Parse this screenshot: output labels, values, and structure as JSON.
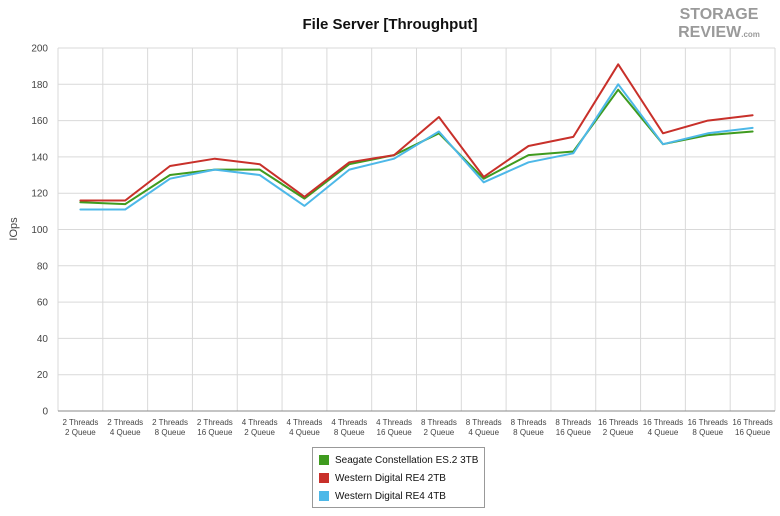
{
  "logo": {
    "line1": "STORAGE",
    "line2": "REVIEW",
    "suffix": ".com"
  },
  "chart_data": {
    "type": "line",
    "title": "File Server [Throughput]",
    "xlabel": "",
    "ylabel": "IOps",
    "ylim": [
      0,
      200
    ],
    "yticks": [
      0,
      20,
      40,
      60,
      80,
      100,
      120,
      140,
      160,
      180,
      200
    ],
    "grid": true,
    "legend_position": "bottom-center",
    "categories": [
      [
        "2 Threads",
        "2 Queue"
      ],
      [
        "2 Threads",
        "4 Queue"
      ],
      [
        "2 Threads",
        "8 Queue"
      ],
      [
        "2 Threads",
        "16 Queue"
      ],
      [
        "4 Threads",
        "2 Queue"
      ],
      [
        "4 Threads",
        "4 Queue"
      ],
      [
        "4 Threads",
        "8 Queue"
      ],
      [
        "4 Threads",
        "16 Queue"
      ],
      [
        "8 Threads",
        "2 Queue"
      ],
      [
        "8 Threads",
        "4 Queue"
      ],
      [
        "8 Threads",
        "8 Queue"
      ],
      [
        "8 Threads",
        "16 Queue"
      ],
      [
        "16 Threads",
        "2 Queue"
      ],
      [
        "16 Threads",
        "4 Queue"
      ],
      [
        "16 Threads",
        "8 Queue"
      ],
      [
        "16 Threads",
        "16 Queue"
      ]
    ],
    "series": [
      {
        "name": "Seagate Constellation ES.2 3TB",
        "color": "#3f9b1f",
        "values": [
          115,
          114,
          130,
          133,
          133,
          117,
          136,
          141,
          153,
          128,
          141,
          143,
          177,
          147,
          152,
          154
        ]
      },
      {
        "name": "Western Digital RE4 2TB",
        "color": "#c8302a",
        "values": [
          116,
          116,
          135,
          139,
          136,
          118,
          137,
          141,
          162,
          129,
          146,
          151,
          191,
          153,
          160,
          163
        ]
      },
      {
        "name": "Western Digital RE4 4TB",
        "color": "#4db8e8",
        "values": [
          111,
          111,
          128,
          133,
          130,
          113,
          133,
          139,
          154,
          126,
          137,
          142,
          180,
          147,
          153,
          156
        ]
      }
    ]
  }
}
